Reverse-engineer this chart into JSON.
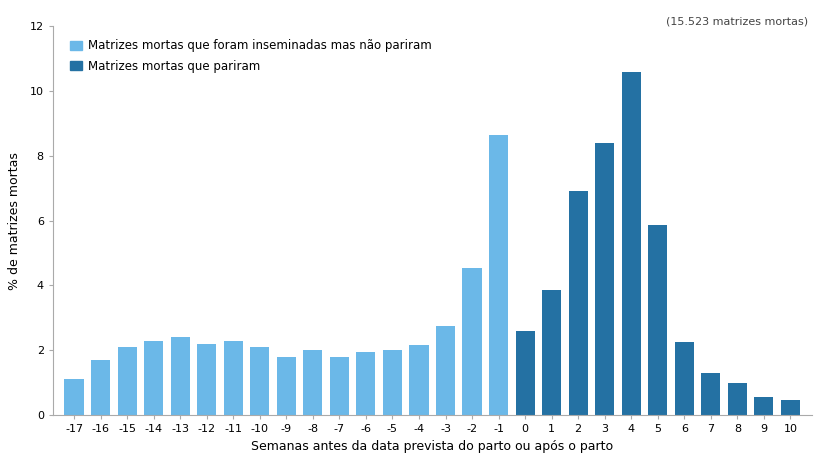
{
  "weeks": [
    -17,
    -16,
    -15,
    -14,
    -13,
    -12,
    -11,
    -10,
    -9,
    -8,
    -7,
    -6,
    -5,
    -4,
    -3,
    -2,
    -1,
    0,
    1,
    2,
    3,
    4,
    5,
    6,
    7,
    8,
    9,
    10
  ],
  "values": [
    1.1,
    1.7,
    2.1,
    2.3,
    2.4,
    2.2,
    2.3,
    2.1,
    1.8,
    2.0,
    1.8,
    1.95,
    2.0,
    2.15,
    2.75,
    4.55,
    8.65,
    2.6,
    3.85,
    6.9,
    8.4,
    10.6,
    5.85,
    2.25,
    1.3,
    1.0,
    0.55,
    0.45
  ],
  "light_weeks": [
    -17,
    -16,
    -15,
    -14,
    -13,
    -12,
    -11,
    -10,
    -9,
    -8,
    -7,
    -6,
    -5,
    -4,
    -3,
    -2,
    -1
  ],
  "dark_weeks": [
    0,
    1,
    2,
    3,
    4,
    5,
    6,
    7,
    8,
    9,
    10
  ],
  "light_blue": "#6BB8E8",
  "dark_blue": "#2471A3",
  "ylabel": "% de matrizes mortas",
  "xlabel": "Semanas antes da data prevista do parto ou após o parto",
  "legend_label1": "Matrizes mortas que foram inseminadas mas não pariram",
  "legend_label2": "Matrizes mortas que pariram",
  "annotation": "(15.523 matrizes mortas)",
  "ylim": [
    0,
    12
  ],
  "yticks": [
    0,
    2,
    4,
    6,
    8,
    10,
    12
  ],
  "background_color": "#ffffff",
  "bar_width": 0.72
}
